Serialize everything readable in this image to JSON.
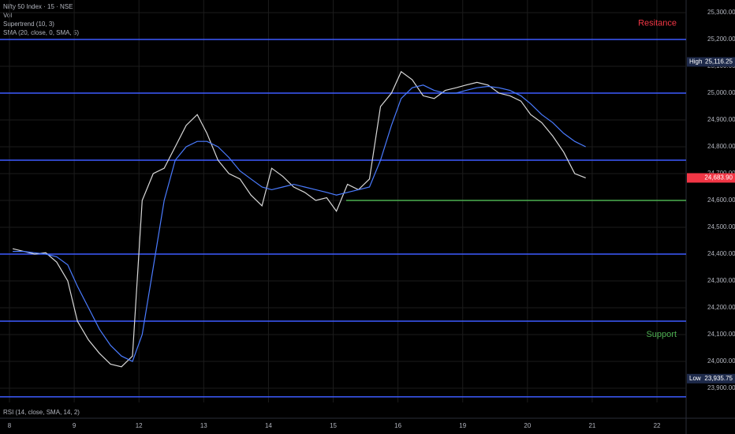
{
  "chart_data": {
    "type": "line",
    "title": "Nifty 50 Index · 15 · NSE",
    "indicators": [
      "Vol",
      "Supertrend (10, 3)",
      "SMA (20, close, 0, SMA, 5)"
    ],
    "footer_indicator": "RSI (14, close, SMA, 14, 2)",
    "annotations": [
      {
        "text": "Resitance",
        "color": "#f23645",
        "value": 25260
      },
      {
        "text": "Support",
        "color": "#4caf50",
        "value": 24100
      }
    ],
    "levels": [
      {
        "value": 25200,
        "color": "#3d5bff"
      },
      {
        "value": 25000,
        "color": "#3d5bff"
      },
      {
        "value": 24750,
        "color": "#3d5bff"
      },
      {
        "value": 24400,
        "color": "#3d5bff"
      },
      {
        "value": 24150,
        "color": "#3d5bff"
      },
      {
        "value": 23868,
        "color": "#3d5bff"
      },
      {
        "value": 24600,
        "color": "#4caf50",
        "from": 5.2
      }
    ],
    "price_tags": [
      {
        "label": "High",
        "value": 25116.25,
        "value_label": "25,116.25",
        "color": "#1e2a4a"
      },
      {
        "value": 24683.9,
        "value_label": "24,683.90",
        "color": "#f23645"
      },
      {
        "label": "Low",
        "value": 23935.75,
        "value_label": "23,935.75",
        "color": "#1e2a4a"
      }
    ],
    "x": [
      0.05,
      0.22,
      0.39,
      0.56,
      0.73,
      0.9,
      1.05,
      1.22,
      1.39,
      1.56,
      1.73,
      1.9,
      2.05,
      2.22,
      2.39,
      2.56,
      2.73,
      2.9,
      3.05,
      3.22,
      3.39,
      3.56,
      3.73,
      3.9,
      4.05,
      4.22,
      4.39,
      4.56,
      4.73,
      4.9,
      5.05,
      5.22,
      5.39,
      5.56,
      5.73,
      5.9,
      6.05,
      6.22,
      6.39,
      6.56,
      6.73,
      6.9,
      7.05,
      7.22,
      7.39,
      7.56,
      7.73,
      7.9,
      8.05,
      8.22,
      8.39,
      8.56,
      8.73,
      8.9
    ],
    "series": [
      {
        "name": "Nifty 50 Index · 15 · NSE",
        "color": "#d8d8d8",
        "values": [
          24420,
          24410,
          24400,
          24405,
          24370,
          24300,
          24150,
          24080,
          24030,
          23990,
          23980,
          24020,
          24600,
          24700,
          24720,
          24800,
          24880,
          24920,
          24850,
          24750,
          24700,
          24680,
          24620,
          24580,
          24720,
          24690,
          24650,
          24630,
          24600,
          24610,
          24560,
          24660,
          24640,
          24680,
          24950,
          25000,
          25080,
          25050,
          24990,
          24980,
          25010,
          25020,
          25030,
          25040,
          25030,
          25000,
          24990,
          24970,
          24920,
          24890,
          24840,
          24780,
          24700,
          24684
        ]
      },
      {
        "name": "SMA (20, close, 0, SMA, 5)",
        "color": "#4a7bff",
        "values": [
          24410,
          24410,
          24405,
          24400,
          24390,
          24360,
          24280,
          24200,
          24120,
          24060,
          24020,
          24000,
          24100,
          24350,
          24600,
          24750,
          24800,
          24820,
          24820,
          24800,
          24760,
          24710,
          24680,
          24650,
          24640,
          24650,
          24660,
          24650,
          24640,
          24630,
          24620,
          24630,
          24640,
          24650,
          24750,
          24880,
          24980,
          25020,
          25030,
          25010,
          25000,
          25000,
          25010,
          25020,
          25025,
          25020,
          25010,
          24990,
          24960,
          24920,
          24890,
          24850,
          24820,
          24800
        ]
      }
    ],
    "xlim": [
      -0.146,
      10.45
    ],
    "xticks": [
      {
        "value": 0,
        "label": "8"
      },
      {
        "value": 1,
        "label": "9"
      },
      {
        "value": 2,
        "label": "12"
      },
      {
        "value": 3,
        "label": "13"
      },
      {
        "value": 4,
        "label": "14"
      },
      {
        "value": 5,
        "label": "15"
      },
      {
        "value": 6,
        "label": "16"
      },
      {
        "value": 7,
        "label": "19"
      },
      {
        "value": 8,
        "label": "20"
      },
      {
        "value": 9,
        "label": "21"
      },
      {
        "value": 10,
        "label": "22"
      }
    ],
    "ylim": [
      23847,
      25347
    ],
    "yticks": [
      {
        "value": 25300,
        "label": "25,300.00"
      },
      {
        "value": 25200,
        "label": "25,200.00"
      },
      {
        "value": 25100,
        "label": "25,100.00"
      },
      {
        "value": 25000,
        "label": "25,000.00"
      },
      {
        "value": 24900,
        "label": "24,900.00"
      },
      {
        "value": 24800,
        "label": "24,800.00"
      },
      {
        "value": 24700,
        "label": "24,700.00"
      },
      {
        "value": 24600,
        "label": "24,600.00"
      },
      {
        "value": 24500,
        "label": "24,500.00"
      },
      {
        "value": 24400,
        "label": "24,400.00"
      },
      {
        "value": 24300,
        "label": "24,300.00"
      },
      {
        "value": 24200,
        "label": "24,200.00"
      },
      {
        "value": 24100,
        "label": "24,100.00"
      },
      {
        "value": 24000,
        "label": "24,000.00"
      },
      {
        "value": 23900,
        "label": "23,900.00"
      }
    ],
    "grid": true
  }
}
